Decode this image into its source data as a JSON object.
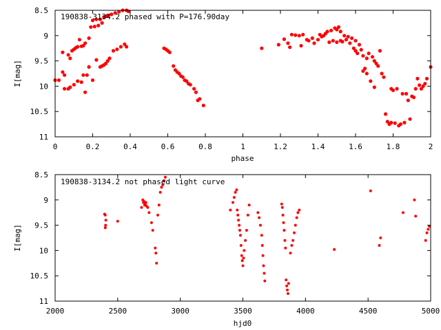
{
  "chart_data": [
    {
      "type": "scatter",
      "title": "190838-3134.2 phased with P=176.90day",
      "xlabel": "phase",
      "ylabel": "I[mag]",
      "xlim": [
        0,
        2
      ],
      "ylim": [
        11,
        8.5
      ],
      "y_inverted": true,
      "x_ticks": [
        "0",
        "0.2",
        "0.4",
        "0.6",
        "0.8",
        "1",
        "1.2",
        "1.4",
        "1.6",
        "1.8",
        "2"
      ],
      "y_ticks": [
        "8.5",
        "9",
        "9.5",
        "10",
        "10.5",
        "11"
      ],
      "marker_color": "#ff0000",
      "grid": false,
      "points": [
        [
          0.0,
          9.88
        ],
        [
          0.02,
          9.88
        ],
        [
          0.04,
          9.33
        ],
        [
          0.04,
          9.72
        ],
        [
          0.05,
          9.78
        ],
        [
          0.05,
          10.05
        ],
        [
          0.07,
          10.05
        ],
        [
          0.07,
          9.38
        ],
        [
          0.08,
          10.02
        ],
        [
          0.08,
          9.45
        ],
        [
          0.09,
          9.3
        ],
        [
          0.1,
          9.97
        ],
        [
          0.1,
          9.27
        ],
        [
          0.11,
          9.24
        ],
        [
          0.12,
          9.9
        ],
        [
          0.12,
          9.22
        ],
        [
          0.13,
          9.08
        ],
        [
          0.14,
          9.92
        ],
        [
          0.14,
          9.21
        ],
        [
          0.15,
          9.78
        ],
        [
          0.15,
          9.2
        ],
        [
          0.16,
          9.15
        ],
        [
          0.16,
          10.12
        ],
        [
          0.17,
          9.78
        ],
        [
          0.18,
          9.62
        ],
        [
          0.18,
          9.05
        ],
        [
          0.19,
          8.83
        ],
        [
          0.2,
          9.88
        ],
        [
          0.2,
          8.7
        ],
        [
          0.21,
          8.82
        ],
        [
          0.22,
          8.68
        ],
        [
          0.22,
          9.48
        ],
        [
          0.23,
          8.8
        ],
        [
          0.24,
          9.62
        ],
        [
          0.24,
          8.68
        ],
        [
          0.25,
          9.6
        ],
        [
          0.25,
          8.75
        ],
        [
          0.26,
          9.58
        ],
        [
          0.26,
          8.63
        ],
        [
          0.27,
          9.55
        ],
        [
          0.27,
          8.62
        ],
        [
          0.28,
          9.5
        ],
        [
          0.28,
          8.6
        ],
        [
          0.29,
          9.45
        ],
        [
          0.3,
          8.58
        ],
        [
          0.31,
          9.3
        ],
        [
          0.32,
          8.55
        ],
        [
          0.33,
          9.27
        ],
        [
          0.34,
          8.53
        ],
        [
          0.35,
          9.22
        ],
        [
          0.36,
          8.5
        ],
        [
          0.37,
          9.17
        ],
        [
          0.38,
          9.22
        ],
        [
          0.38,
          8.5
        ],
        [
          0.39,
          8.52
        ],
        [
          0.58,
          9.25
        ],
        [
          0.59,
          9.27
        ],
        [
          0.6,
          9.3
        ],
        [
          0.61,
          9.33
        ],
        [
          0.63,
          9.6
        ],
        [
          0.64,
          9.68
        ],
        [
          0.65,
          9.72
        ],
        [
          0.66,
          9.75
        ],
        [
          0.67,
          9.8
        ],
        [
          0.68,
          9.82
        ],
        [
          0.69,
          9.88
        ],
        [
          0.7,
          9.9
        ],
        [
          0.71,
          9.95
        ],
        [
          0.72,
          9.97
        ],
        [
          0.74,
          10.05
        ],
        [
          0.75,
          10.12
        ],
        [
          0.76,
          10.28
        ],
        [
          0.77,
          10.25
        ],
        [
          0.79,
          10.38
        ],
        [
          1.1,
          9.25
        ],
        [
          1.19,
          9.18
        ],
        [
          1.22,
          9.07
        ],
        [
          1.24,
          9.15
        ],
        [
          1.25,
          9.23
        ],
        [
          1.26,
          8.98
        ],
        [
          1.28,
          8.99
        ],
        [
          1.3,
          9.0
        ],
        [
          1.31,
          9.2
        ],
        [
          1.32,
          8.98
        ],
        [
          1.34,
          9.08
        ],
        [
          1.35,
          9.1
        ],
        [
          1.37,
          9.05
        ],
        [
          1.38,
          9.15
        ],
        [
          1.4,
          9.08
        ],
        [
          1.41,
          8.98
        ],
        [
          1.42,
          9.02
        ],
        [
          1.43,
          9.0
        ],
        [
          1.44,
          8.96
        ],
        [
          1.45,
          8.92
        ],
        [
          1.46,
          9.13
        ],
        [
          1.47,
          8.9
        ],
        [
          1.48,
          9.1
        ],
        [
          1.49,
          8.85
        ],
        [
          1.5,
          9.13
        ],
        [
          1.5,
          8.88
        ],
        [
          1.51,
          8.83
        ],
        [
          1.52,
          9.1
        ],
        [
          1.52,
          8.92
        ],
        [
          1.53,
          9.12
        ],
        [
          1.54,
          9.0
        ],
        [
          1.55,
          9.08
        ],
        [
          1.56,
          9.02
        ],
        [
          1.57,
          9.15
        ],
        [
          1.58,
          9.05
        ],
        [
          1.59,
          9.25
        ],
        [
          1.6,
          9.3
        ],
        [
          1.6,
          9.1
        ],
        [
          1.61,
          9.35
        ],
        [
          1.62,
          9.18
        ],
        [
          1.63,
          9.28
        ],
        [
          1.64,
          9.4
        ],
        [
          1.64,
          9.7
        ],
        [
          1.65,
          9.65
        ],
        [
          1.66,
          9.45
        ],
        [
          1.66,
          9.75
        ],
        [
          1.67,
          9.35
        ],
        [
          1.68,
          9.9
        ],
        [
          1.69,
          9.42
        ],
        [
          1.7,
          10.02
        ],
        [
          1.7,
          9.5
        ],
        [
          1.71,
          9.55
        ],
        [
          1.72,
          9.6
        ],
        [
          1.73,
          9.3
        ],
        [
          1.74,
          9.75
        ],
        [
          1.75,
          9.82
        ],
        [
          1.76,
          10.55
        ],
        [
          1.77,
          10.7
        ],
        [
          1.78,
          10.75
        ],
        [
          1.79,
          10.05
        ],
        [
          1.79,
          10.72
        ],
        [
          1.8,
          10.08
        ],
        [
          1.81,
          10.73
        ],
        [
          1.82,
          10.05
        ],
        [
          1.83,
          10.78
        ],
        [
          1.84,
          10.75
        ],
        [
          1.85,
          10.15
        ],
        [
          1.86,
          10.72
        ],
        [
          1.87,
          10.15
        ],
        [
          1.88,
          10.28
        ],
        [
          1.89,
          10.65
        ],
        [
          1.9,
          10.2
        ],
        [
          1.91,
          10.22
        ],
        [
          1.92,
          10.05
        ],
        [
          1.93,
          9.85
        ],
        [
          1.94,
          9.98
        ],
        [
          1.95,
          10.05
        ],
        [
          1.96,
          10.0
        ],
        [
          1.97,
          9.95
        ],
        [
          1.98,
          9.85
        ],
        [
          2.0,
          9.62
        ]
      ]
    },
    {
      "type": "scatter",
      "title": "190838-3134.2 not phased light curve",
      "xlabel": "hjd0",
      "ylabel": "I[mag]",
      "xlim": [
        2000,
        5000
      ],
      "ylim": [
        11,
        8.5
      ],
      "y_inverted": true,
      "x_ticks": [
        "2000",
        "2500",
        "3000",
        "3500",
        "4000",
        "4500",
        "5000"
      ],
      "y_ticks": [
        "8.5",
        "9",
        "9.5",
        "10",
        "10.5",
        "11"
      ],
      "marker_color": "#ff0000",
      "grid": false,
      "points": [
        [
          2395,
          9.28
        ],
        [
          2400,
          9.3
        ],
        [
          2401,
          9.55
        ],
        [
          2403,
          9.5
        ],
        [
          2405,
          9.4
        ],
        [
          2500,
          9.42
        ],
        [
          2690,
          9.15
        ],
        [
          2700,
          9.0
        ],
        [
          2705,
          9.05
        ],
        [
          2710,
          9.03
        ],
        [
          2715,
          9.1
        ],
        [
          2720,
          9.08
        ],
        [
          2725,
          9.05
        ],
        [
          2730,
          9.12
        ],
        [
          2740,
          9.15
        ],
        [
          2750,
          9.25
        ],
        [
          2770,
          9.45
        ],
        [
          2780,
          9.6
        ],
        [
          2800,
          9.95
        ],
        [
          2805,
          10.05
        ],
        [
          2810,
          10.25
        ],
        [
          2820,
          9.3
        ],
        [
          2830,
          9.1
        ],
        [
          2840,
          8.85
        ],
        [
          2850,
          8.75
        ],
        [
          2860,
          8.7
        ],
        [
          2870,
          8.62
        ],
        [
          2880,
          8.55
        ],
        [
          3400,
          9.2
        ],
        [
          3420,
          9.05
        ],
        [
          3430,
          8.95
        ],
        [
          3440,
          8.85
        ],
        [
          3450,
          8.8
        ],
        [
          3455,
          9.2
        ],
        [
          3460,
          9.3
        ],
        [
          3465,
          9.4
        ],
        [
          3470,
          9.5
        ],
        [
          3475,
          9.6
        ],
        [
          3480,
          9.7
        ],
        [
          3485,
          9.9
        ],
        [
          3490,
          10.1
        ],
        [
          3495,
          10.2
        ],
        [
          3500,
          10.3
        ],
        [
          3505,
          10.15
        ],
        [
          3510,
          10.0
        ],
        [
          3520,
          9.8
        ],
        [
          3530,
          9.6
        ],
        [
          3540,
          9.3
        ],
        [
          3550,
          9.1
        ],
        [
          3620,
          9.25
        ],
        [
          3630,
          9.35
        ],
        [
          3640,
          9.5
        ],
        [
          3650,
          9.7
        ],
        [
          3655,
          9.9
        ],
        [
          3660,
          10.1
        ],
        [
          3665,
          10.3
        ],
        [
          3670,
          10.45
        ],
        [
          3675,
          10.6
        ],
        [
          3810,
          9.08
        ],
        [
          3815,
          9.15
        ],
        [
          3820,
          9.3
        ],
        [
          3825,
          9.45
        ],
        [
          3830,
          9.6
        ],
        [
          3835,
          9.8
        ],
        [
          3840,
          9.95
        ],
        [
          3845,
          10.58
        ],
        [
          3850,
          10.7
        ],
        [
          3855,
          10.78
        ],
        [
          3860,
          10.85
        ],
        [
          3865,
          10.65
        ],
        [
          3880,
          10.05
        ],
        [
          3890,
          9.9
        ],
        [
          3900,
          9.8
        ],
        [
          3910,
          9.65
        ],
        [
          3920,
          9.5
        ],
        [
          3930,
          9.35
        ],
        [
          3940,
          9.25
        ],
        [
          3950,
          9.2
        ],
        [
          4230,
          9.98
        ],
        [
          4520,
          8.82
        ],
        [
          4590,
          9.9
        ],
        [
          4600,
          9.75
        ],
        [
          4780,
          9.25
        ],
        [
          4870,
          9.0
        ],
        [
          4880,
          9.32
        ],
        [
          4960,
          9.8
        ],
        [
          4970,
          9.65
        ],
        [
          4980,
          9.58
        ],
        [
          4990,
          9.52
        ]
      ]
    }
  ]
}
